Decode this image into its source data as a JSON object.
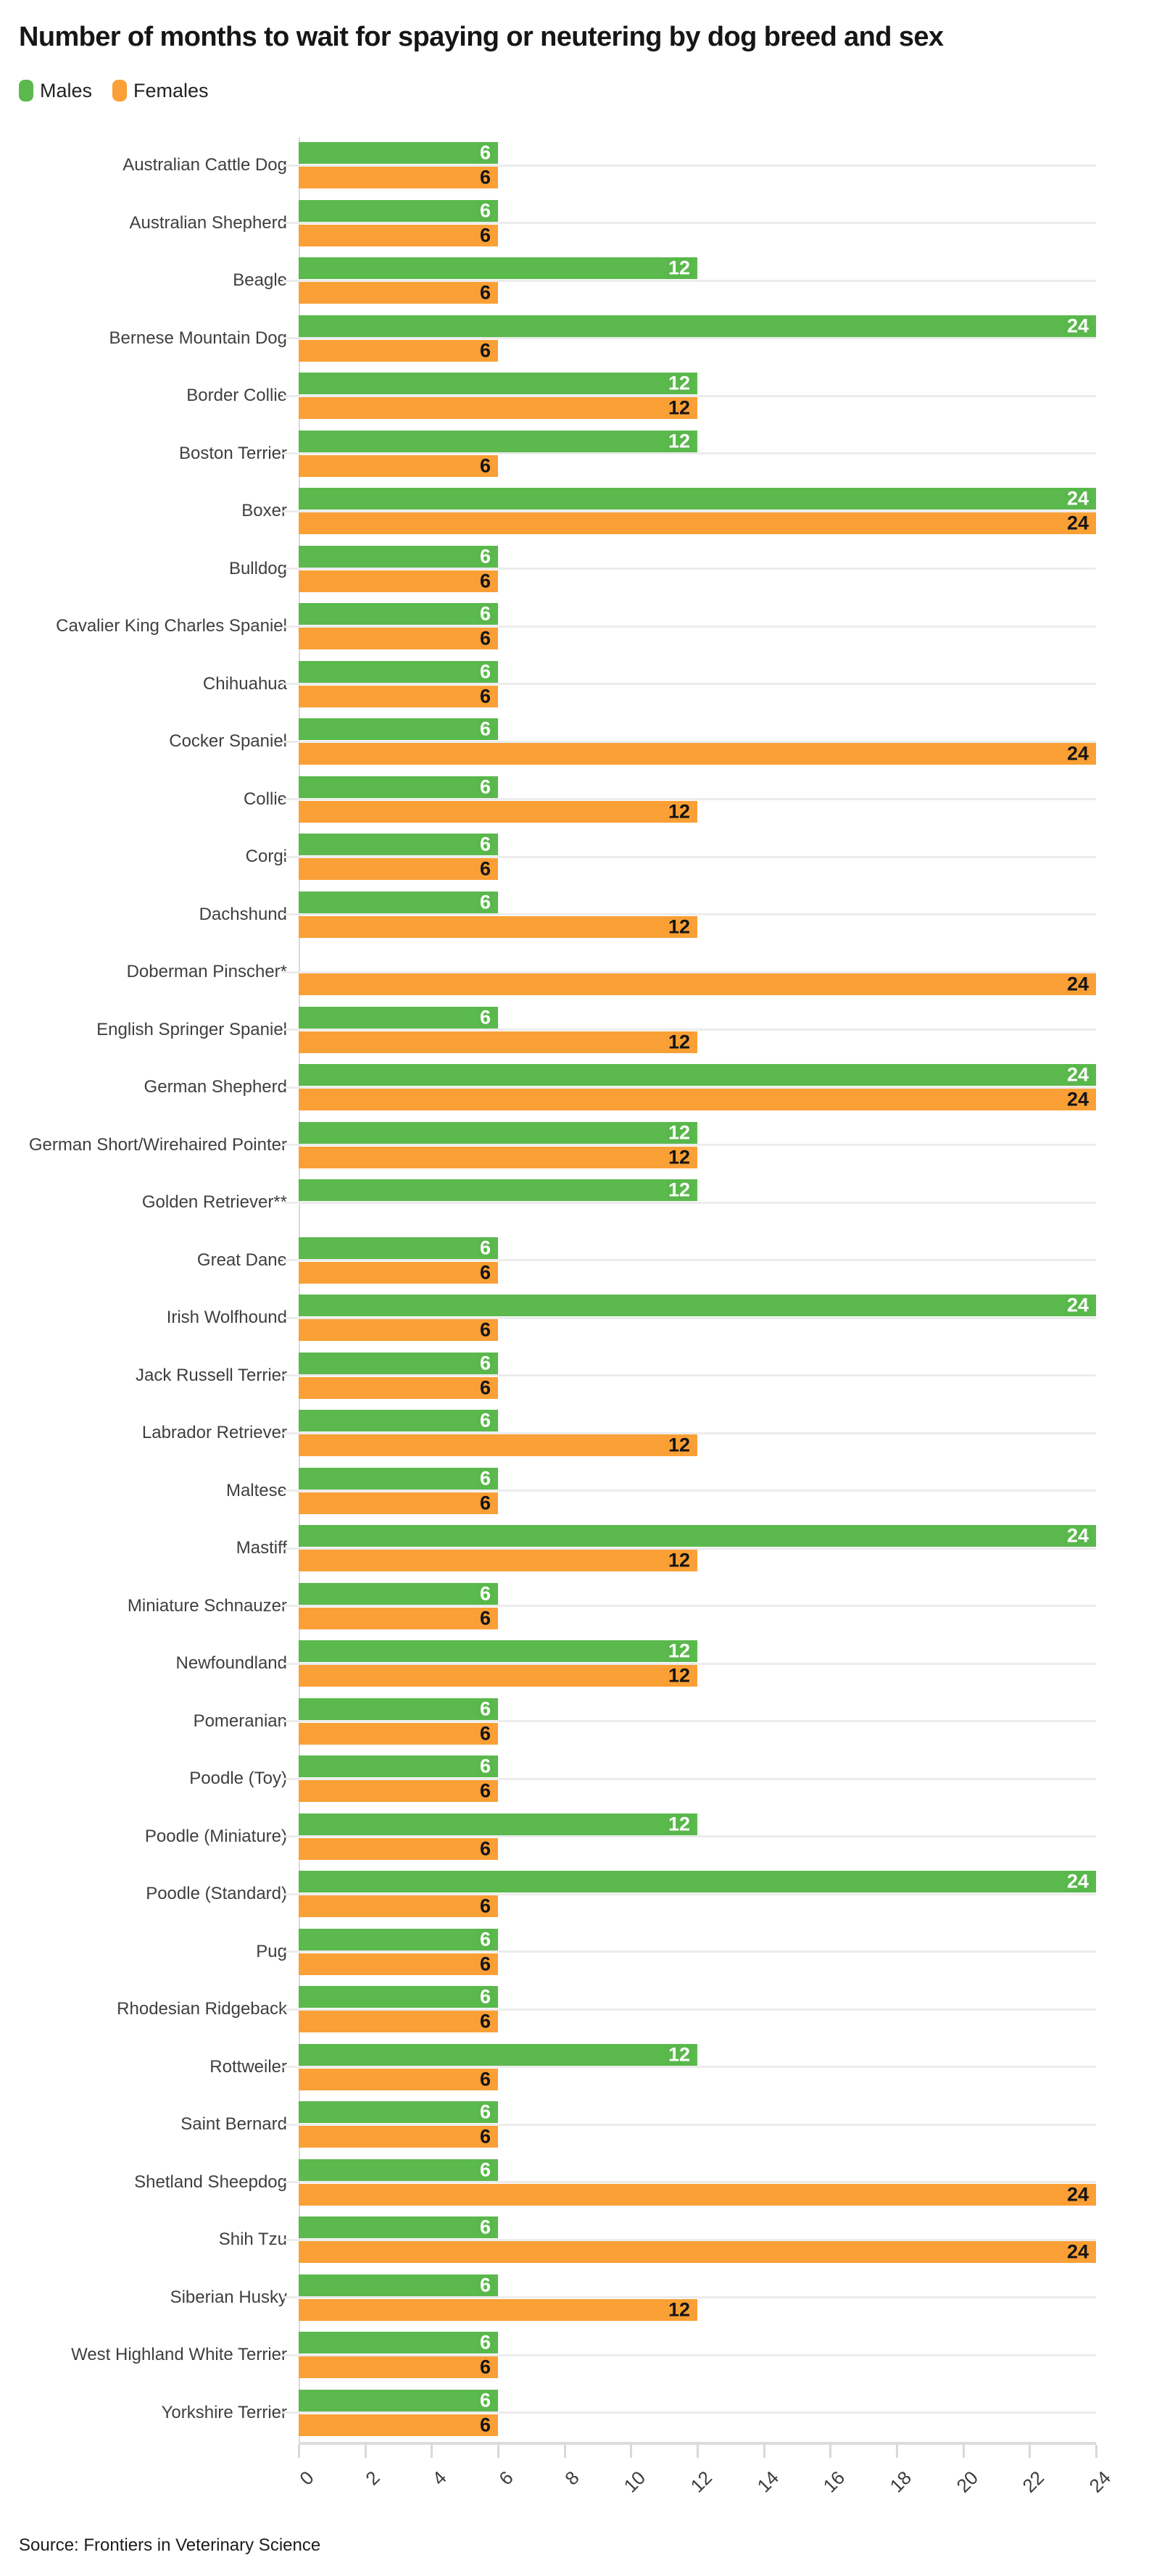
{
  "header": {
    "title": "Number of months to wait for spaying or neutering by dog breed and sex"
  },
  "chart_data": {
    "type": "bar",
    "orientation": "horizontal",
    "unit": "months",
    "title": "Number of months to wait for spaying or neutering by dog breed and sex",
    "xlabel": "",
    "ylabel": "",
    "xlim": [
      0,
      24
    ],
    "x_ticks": [
      0,
      2,
      4,
      6,
      8,
      10,
      12,
      14,
      16,
      18,
      20,
      22,
      24
    ],
    "grid": "horizontal category gridlines only",
    "legend_position": "top-left",
    "categories": [
      "Australian Cattle Dog",
      "Australian Shepherd",
      "Beagle",
      "Bernese Mountain Dog",
      "Border Collie",
      "Boston Terrier",
      "Boxer",
      "Bulldog",
      "Cavalier King Charles Spaniel",
      "Chihuahua",
      "Cocker Spaniel",
      "Collie",
      "Corgi",
      "Dachshund",
      "Doberman Pinscher*",
      "English Springer Spaniel",
      "German Shepherd",
      "German Short/Wirehaired Pointer",
      "Golden Retriever**",
      "Great Dane",
      "Irish Wolfhound",
      "Jack Russell Terrier",
      "Labrador Retriever",
      "Maltese",
      "Mastiff",
      "Miniature Schnauzer",
      "Newfoundland",
      "Pomeranian",
      "Poodle (Toy)",
      "Poodle (Miniature)",
      "Poodle (Standard)",
      "Pug",
      "Rhodesian Ridgeback",
      "Rottweiler",
      "Saint Bernard",
      "Shetland Sheepdog",
      "Shih Tzu",
      "Siberian Husky",
      "West Highland White Terrier",
      "Yorkshire Terrier"
    ],
    "series": [
      {
        "name": "Males",
        "color": "#5bb94d",
        "label_color": "#ffffff",
        "values": [
          6,
          6,
          12,
          24,
          12,
          12,
          24,
          6,
          6,
          6,
          6,
          6,
          6,
          6,
          null,
          6,
          24,
          12,
          12,
          6,
          24,
          6,
          6,
          6,
          24,
          6,
          12,
          6,
          6,
          12,
          24,
          6,
          6,
          12,
          6,
          6,
          6,
          6,
          6,
          6
        ]
      },
      {
        "name": "Females",
        "color": "#faa037",
        "label_color": "#151515",
        "values": [
          6,
          6,
          6,
          6,
          12,
          6,
          24,
          6,
          6,
          6,
          24,
          12,
          6,
          12,
          24,
          12,
          24,
          12,
          null,
          6,
          6,
          6,
          12,
          6,
          12,
          6,
          12,
          6,
          6,
          6,
          6,
          6,
          6,
          6,
          6,
          24,
          24,
          12,
          6,
          6
        ]
      }
    ]
  },
  "footer": {
    "source": "Source: Frontiers in Veterinary Science"
  }
}
